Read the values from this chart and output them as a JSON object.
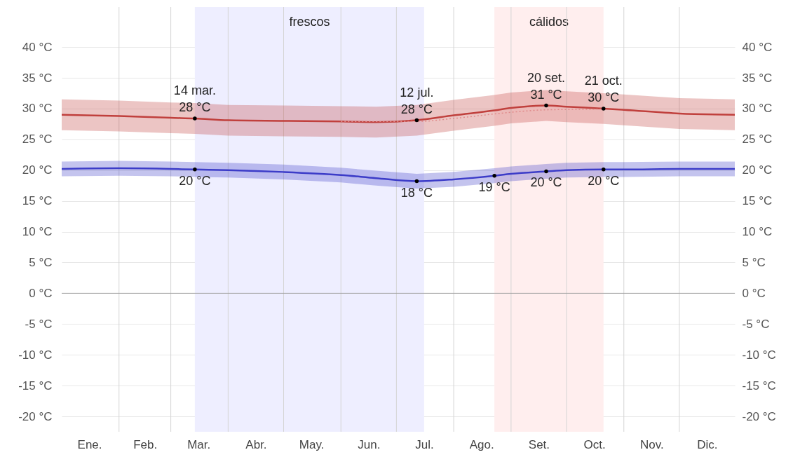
{
  "chart_data": {
    "type": "line",
    "x": [
      "--01-01",
      "--02-01",
      "--03-01",
      "--03-14",
      "--04-01",
      "--05-01",
      "--06-01",
      "--06-20",
      "--07-12",
      "--08-01",
      "--08-23",
      "--09-01",
      "--09-20",
      "--10-01",
      "--10-21",
      "--11-01",
      "--12-01",
      "--12-31"
    ],
    "series": [
      {
        "type": "line",
        "color": "#c0403d",
        "values": [
          29.0,
          28.8,
          28.5,
          28.4,
          28.1,
          28.0,
          27.9,
          27.8,
          28.1,
          28.9,
          29.7,
          30.1,
          30.5,
          30.3,
          30.0,
          29.8,
          29.2,
          29.0
        ],
        "lower": [
          26.5,
          26.3,
          26.0,
          25.9,
          25.6,
          25.5,
          25.4,
          25.3,
          25.6,
          26.4,
          27.2,
          27.6,
          28.0,
          27.8,
          27.5,
          27.3,
          26.7,
          26.5
        ],
        "upper": [
          31.5,
          31.3,
          31.0,
          30.9,
          30.6,
          30.5,
          30.4,
          30.3,
          30.6,
          31.4,
          32.2,
          32.6,
          33.0,
          32.8,
          32.5,
          32.3,
          31.7,
          31.5
        ]
      },
      {
        "type": "line",
        "color": "#e08a8a",
        "line_style": "dotted",
        "x": [
          "--06-01",
          "--07-12",
          "--08-01",
          "--09-01",
          "--09-20",
          "--10-21"
        ],
        "values": [
          27.9,
          27.9,
          28.4,
          29.4,
          29.8,
          29.9
        ]
      },
      {
        "type": "line",
        "color": "#3c3cc8",
        "values": [
          20.2,
          20.3,
          20.2,
          20.1,
          20.0,
          19.7,
          19.2,
          18.7,
          18.2,
          18.5,
          19.1,
          19.4,
          19.8,
          20.0,
          20.1,
          20.1,
          20.2,
          20.2
        ],
        "lower": [
          19.0,
          19.1,
          19.0,
          18.9,
          18.8,
          18.5,
          18.0,
          17.5,
          17.0,
          17.3,
          17.9,
          18.2,
          18.6,
          18.8,
          18.9,
          18.9,
          19.0,
          19.0
        ],
        "upper": [
          21.4,
          21.5,
          21.4,
          21.3,
          21.2,
          20.9,
          20.4,
          19.9,
          19.4,
          19.7,
          20.3,
          20.6,
          21.0,
          21.2,
          21.3,
          21.3,
          21.4,
          21.4
        ]
      }
    ],
    "xlim": [
      "--01-01",
      "--12-31"
    ],
    "xticks": [
      {
        "value": "--02-01",
        "label": null
      },
      {
        "value": "--03-01",
        "label": null
      },
      {
        "value": "--04-01",
        "label": null
      },
      {
        "value": "--05-01",
        "label": null
      },
      {
        "value": "--06-01",
        "label": null
      },
      {
        "value": "--07-01",
        "label": null
      },
      {
        "value": "--08-01",
        "label": null
      },
      {
        "value": "--09-01",
        "label": null
      },
      {
        "value": "--10-01",
        "label": null
      },
      {
        "value": "--11-01",
        "label": null
      },
      {
        "value": "--12-01",
        "label": null
      },
      {
        "value": "--01-16",
        "label": "Ene."
      },
      {
        "value": "--02-15",
        "label": "Feb."
      },
      {
        "value": "--03-16",
        "label": "Mar."
      },
      {
        "value": "--04-16",
        "label": "Abr."
      },
      {
        "value": "--05-16",
        "label": "May."
      },
      {
        "value": "--06-16",
        "label": "Jun."
      },
      {
        "value": "--07-16",
        "label": "Jul."
      },
      {
        "value": "--08-16",
        "label": "Ago."
      },
      {
        "value": "--09-16",
        "label": "Set."
      },
      {
        "value": "--10-16",
        "label": "Oct."
      },
      {
        "value": "--11-16",
        "label": "Nov."
      },
      {
        "value": "--12-16",
        "label": "Dic."
      }
    ],
    "ylim": [
      -22.5,
      46.5
    ],
    "yticks": [
      {
        "value": -20,
        "label": "-20 °C"
      },
      {
        "value": -15,
        "label": "-15 °C"
      },
      {
        "value": -10,
        "label": "-10 °C"
      },
      {
        "value": -5,
        "label": "-5 °C"
      },
      {
        "value": 0,
        "label": "0 °C"
      },
      {
        "value": 5,
        "label": "5 °C"
      },
      {
        "value": 10,
        "label": "10 °C"
      },
      {
        "value": 15,
        "label": "15 °C"
      },
      {
        "value": 20,
        "label": "20 °C"
      },
      {
        "value": 25,
        "label": "25 °C"
      },
      {
        "value": 30,
        "label": "30 °C"
      },
      {
        "value": 35,
        "label": "35 °C"
      },
      {
        "value": 40,
        "label": "40 °C"
      }
    ],
    "y2lim": [
      -22.5,
      46.5
    ],
    "y2ticks": [
      {
        "value": -20,
        "label": "-20 °C"
      },
      {
        "value": -15,
        "label": "-15 °C"
      },
      {
        "value": -10,
        "label": "-10 °C"
      },
      {
        "value": -5,
        "label": "-5 °C"
      },
      {
        "value": 0,
        "label": "0 °C"
      },
      {
        "value": 5,
        "label": "5 °C"
      },
      {
        "value": 10,
        "label": "10 °C"
      },
      {
        "value": 15,
        "label": "15 °C"
      },
      {
        "value": 20,
        "label": "20 °C"
      },
      {
        "value": 25,
        "label": "25 °C"
      },
      {
        "value": 30,
        "label": "30 °C"
      },
      {
        "value": 35,
        "label": "35 °C"
      },
      {
        "value": 40,
        "label": "40 °C"
      }
    ],
    "bands": [
      {
        "axis": "x",
        "from": "--03-14",
        "to": "--07-16",
        "label": "frescos",
        "color": "#eeeeff"
      },
      {
        "axis": "x",
        "from": "--08-23",
        "to": "--10-21",
        "label": "cálidos",
        "color": "#ffeeee"
      }
    ],
    "ref_lines": [
      {
        "axis": "y",
        "value": 0,
        "color": "#a0a0a0"
      }
    ],
    "annotations": [
      {
        "text": "14 mar.\n28 °C",
        "x": "--03-14",
        "y": 28.4
      },
      {
        "text": "12 jul.\n28 °C",
        "x": "--07-12",
        "y": 28.1
      },
      {
        "text": "20 set.\n31 °C",
        "x": "--09-20",
        "y": 30.5
      },
      {
        "text": "21 oct.\n30 °C",
        "x": "--10-21",
        "y": 30.0
      },
      {
        "text": "20 °C",
        "x": "--03-14",
        "y": 20.1
      },
      {
        "text": "18 °C",
        "x": "--07-12",
        "y": 18.2
      },
      {
        "text": "19 °C",
        "x": "--08-23",
        "y": 19.1
      },
      {
        "text": "20 °C",
        "x": "--09-20",
        "y": 19.8
      },
      {
        "text": "20 °C",
        "x": "--10-21",
        "y": 20.1
      }
    ],
    "grid": true
  }
}
